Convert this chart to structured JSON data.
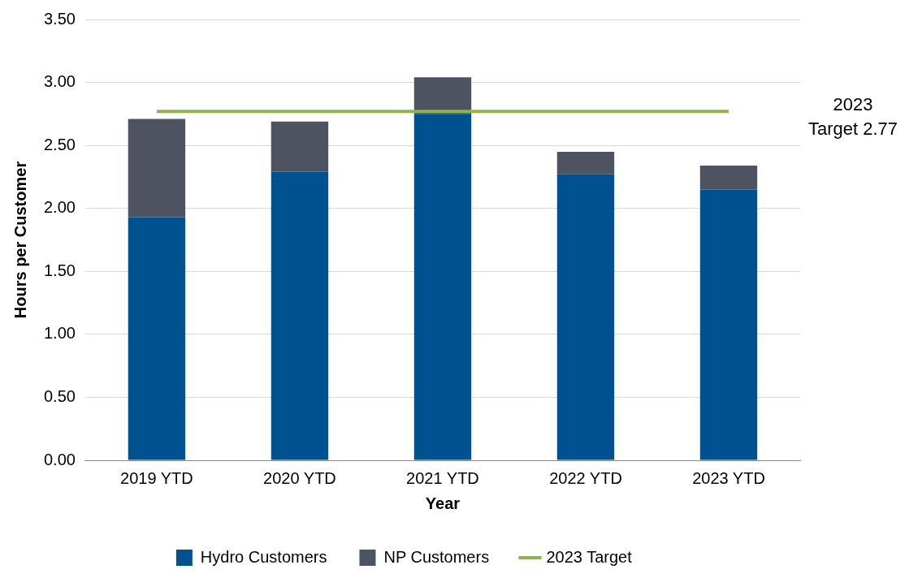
{
  "chart_data": {
    "type": "bar",
    "stacked": true,
    "xlabel": "Year",
    "ylabel": "Hours per Customer",
    "categories": [
      "2019 YTD",
      "2020 YTD",
      "2021 YTD",
      "2022 YTD",
      "2023 YTD"
    ],
    "series": [
      {
        "name": "Hydro Customers",
        "color": "#00518f",
        "values": [
          1.93,
          2.29,
          2.75,
          2.27,
          2.15
        ]
      },
      {
        "name": "NP Customers",
        "color": "#4d5360",
        "values": [
          0.78,
          0.4,
          0.29,
          0.18,
          0.19
        ]
      },
      {
        "name": "2023 Target",
        "type": "line",
        "color": "#8db54b",
        "values": [
          2.77,
          2.77,
          2.77,
          2.77,
          2.77
        ]
      }
    ],
    "ylim": [
      0,
      3.5
    ],
    "yticks": [
      {
        "value": 0,
        "label": "0.00"
      },
      {
        "value": 0.5,
        "label": "0.50"
      },
      {
        "value": 1,
        "label": "1.00"
      },
      {
        "value": 1.5,
        "label": "1.50"
      },
      {
        "value": 2,
        "label": "2.00"
      },
      {
        "value": 2.5,
        "label": "2.50"
      },
      {
        "value": 3,
        "label": "3.00"
      },
      {
        "value": 3.5,
        "label": "3.50"
      }
    ],
    "grid": "y",
    "legend": "bottom",
    "marker": "none",
    "annotations": [
      "2023 Target 2.77"
    ]
  }
}
